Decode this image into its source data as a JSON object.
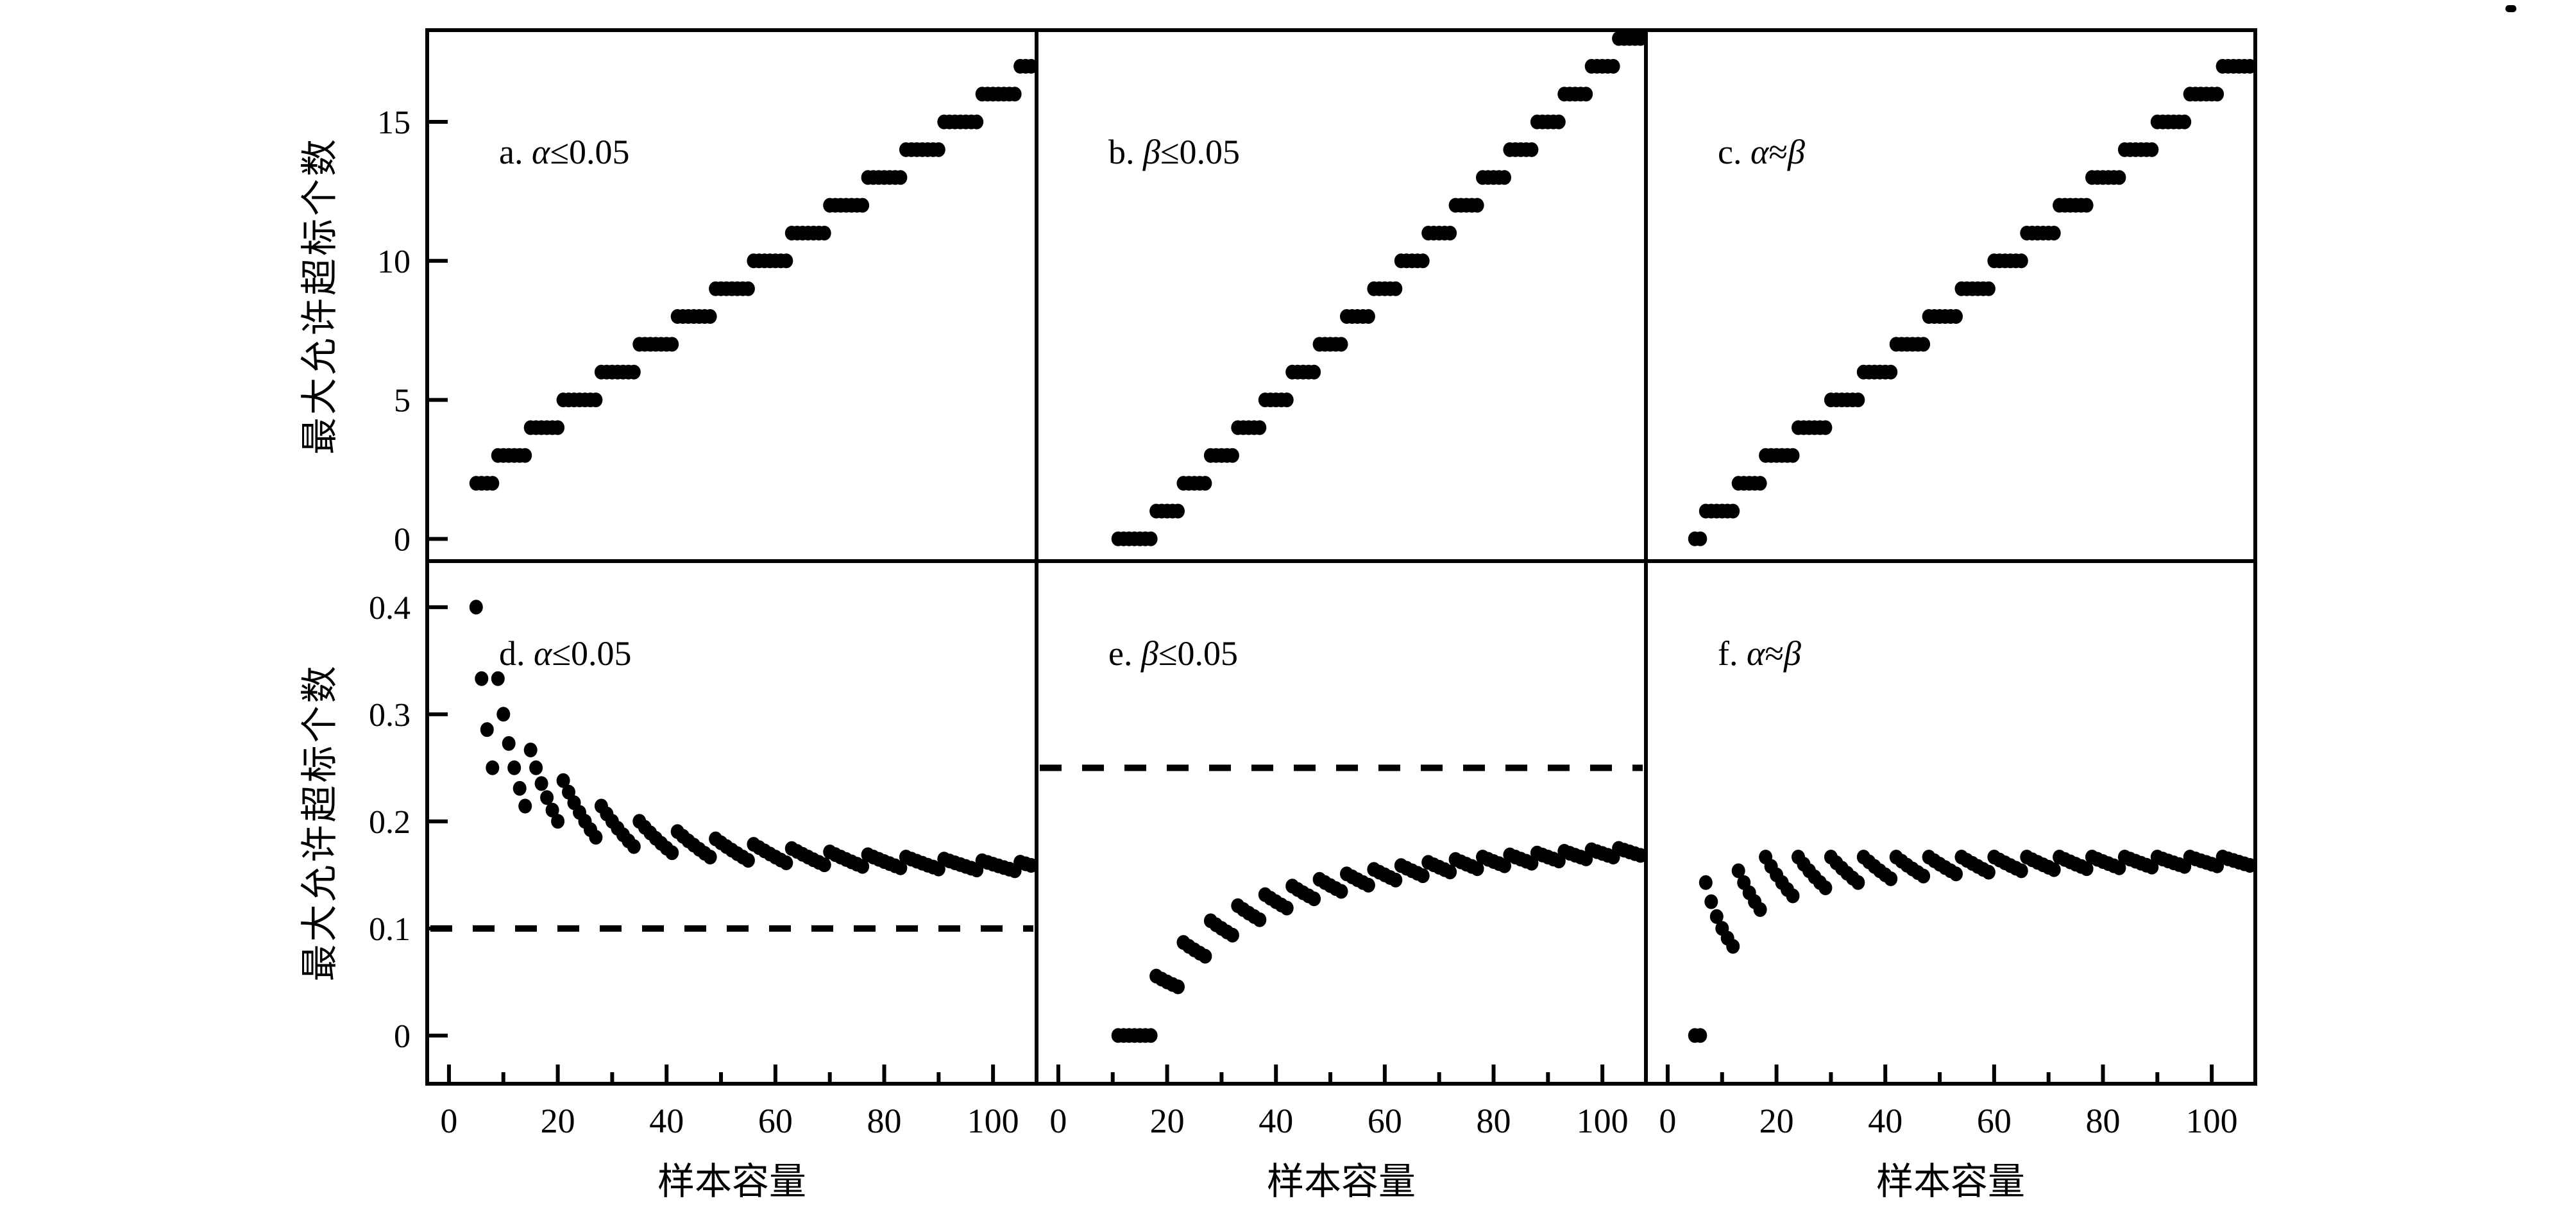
{
  "figure": {
    "background": "#ffffff",
    "ink": "#000000",
    "x_axis_title": "样本容量",
    "y_axis_title": "最大允许超标个数",
    "marker": "filled-black-dot",
    "stray_mark_top_right": "small ink speck in the top-right corner of the image"
  },
  "chart_data": {
    "type": "scatter",
    "grid": false,
    "legend": "none",
    "xlabel": "样本容量",
    "ylabel": "最大允许超标个数",
    "xlim": [
      -4,
      108
    ],
    "x_major_ticks": [
      0,
      20,
      40,
      60,
      80,
      100
    ],
    "x_minor_ticks": [
      10,
      30,
      50,
      70,
      90
    ],
    "x_values_note": "one point per integer sample size n; top row y = k (count), bottom row y = k/n (ratio)",
    "rows": [
      {
        "position": "top",
        "ylim": [
          -0.8,
          18.3
        ],
        "y_ticks": [
          0,
          5,
          10,
          15
        ],
        "y_tick_labels": [
          "0",
          "5",
          "10",
          "15"
        ],
        "quantity": "k (count)"
      },
      {
        "position": "bottom",
        "ylim": [
          -0.045,
          0.443
        ],
        "y_ticks": [
          0,
          0.1,
          0.2,
          0.3,
          0.4
        ],
        "y_tick_labels": [
          "0",
          "0.1",
          "0.2",
          "0.3",
          "0.4"
        ],
        "quantity": "k/n (ratio)"
      }
    ],
    "criteria_steps": {
      "alpha": [
        [
          2,
          5,
          8
        ],
        [
          3,
          9,
          14
        ],
        [
          4,
          15,
          20
        ],
        [
          5,
          21,
          27
        ],
        [
          6,
          28,
          34
        ],
        [
          7,
          35,
          41
        ],
        [
          8,
          42,
          48
        ],
        [
          9,
          49,
          55
        ],
        [
          10,
          56,
          62
        ],
        [
          11,
          63,
          69
        ],
        [
          12,
          70,
          76
        ],
        [
          13,
          77,
          83
        ],
        [
          14,
          84,
          90
        ],
        [
          15,
          91,
          97
        ],
        [
          16,
          98,
          104
        ],
        [
          17,
          105,
          107
        ]
      ],
      "beta": [
        [
          0,
          11,
          17
        ],
        [
          1,
          18,
          22
        ],
        [
          2,
          23,
          27
        ],
        [
          3,
          28,
          32
        ],
        [
          4,
          33,
          37
        ],
        [
          5,
          38,
          42
        ],
        [
          6,
          43,
          47
        ],
        [
          7,
          48,
          52
        ],
        [
          8,
          53,
          57
        ],
        [
          9,
          58,
          62
        ],
        [
          10,
          63,
          67
        ],
        [
          11,
          68,
          72
        ],
        [
          12,
          73,
          77
        ],
        [
          13,
          78,
          82
        ],
        [
          14,
          83,
          87
        ],
        [
          15,
          88,
          92
        ],
        [
          16,
          93,
          97
        ],
        [
          17,
          98,
          102
        ],
        [
          18,
          103,
          107
        ]
      ],
      "balanced": [
        [
          0,
          5,
          6
        ],
        [
          1,
          7,
          12
        ],
        [
          2,
          13,
          17
        ],
        [
          3,
          18,
          23
        ],
        [
          4,
          24,
          29
        ],
        [
          5,
          30,
          35
        ],
        [
          6,
          36,
          41
        ],
        [
          7,
          42,
          47
        ],
        [
          8,
          48,
          53
        ],
        [
          9,
          54,
          59
        ],
        [
          10,
          60,
          65
        ],
        [
          11,
          66,
          71
        ],
        [
          12,
          72,
          77
        ],
        [
          13,
          78,
          83
        ],
        [
          14,
          84,
          89
        ],
        [
          15,
          90,
          95
        ],
        [
          16,
          96,
          101
        ],
        [
          17,
          102,
          107
        ]
      ]
    },
    "panels": [
      {
        "id": "a",
        "row": "top",
        "col": 0,
        "title": "a. α≤0.05",
        "criterion": "alpha",
        "mode": "count",
        "dashed_y": null
      },
      {
        "id": "b",
        "row": "top",
        "col": 1,
        "title": "b. β≤0.05",
        "criterion": "beta",
        "mode": "count",
        "dashed_y": null
      },
      {
        "id": "c",
        "row": "top",
        "col": 2,
        "title": "c. α≈β",
        "criterion": "balanced",
        "mode": "count",
        "dashed_y": null
      },
      {
        "id": "d",
        "row": "bottom",
        "col": 0,
        "title": "d. α≤0.05",
        "criterion": "alpha",
        "mode": "ratio",
        "dashed_y": 0.1
      },
      {
        "id": "e",
        "row": "bottom",
        "col": 1,
        "title": "e. β≤0.05",
        "criterion": "beta",
        "mode": "ratio",
        "dashed_y": 0.25
      },
      {
        "id": "f",
        "row": "bottom",
        "col": 2,
        "title": "f. α≈β",
        "criterion": "balanced",
        "mode": "ratio",
        "dashed_y": null
      }
    ]
  }
}
